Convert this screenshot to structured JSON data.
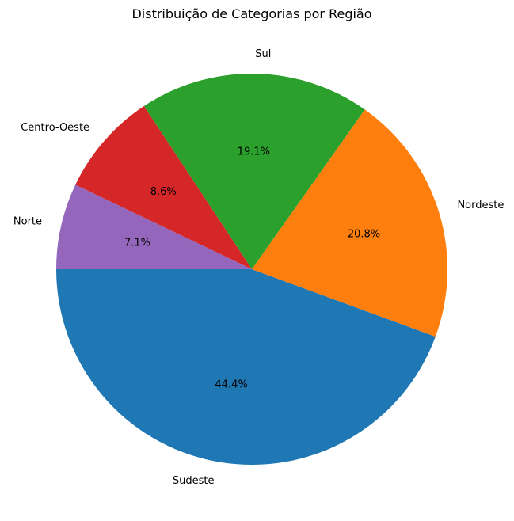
{
  "chart_data": {
    "type": "pie",
    "title": "Distribuição de Categorias por Região",
    "slices": [
      {
        "label": "Sudeste",
        "pct": 44.4,
        "pct_label": "44.4%",
        "color": "#1f77b4"
      },
      {
        "label": "Nordeste",
        "pct": 20.8,
        "pct_label": "20.8%",
        "color": "#ff7f0e"
      },
      {
        "label": "Sul",
        "pct": 19.1,
        "pct_label": "19.1%",
        "color": "#2ca02c"
      },
      {
        "label": "Centro-Oeste",
        "pct": 8.6,
        "pct_label": "8.6%",
        "color": "#d62728"
      },
      {
        "label": "Norte",
        "pct": 7.1,
        "pct_label": "7.1%",
        "color": "#9467bd"
      }
    ],
    "start_angle_deg": 180,
    "direction": "counterclockwise",
    "legend": "none"
  }
}
